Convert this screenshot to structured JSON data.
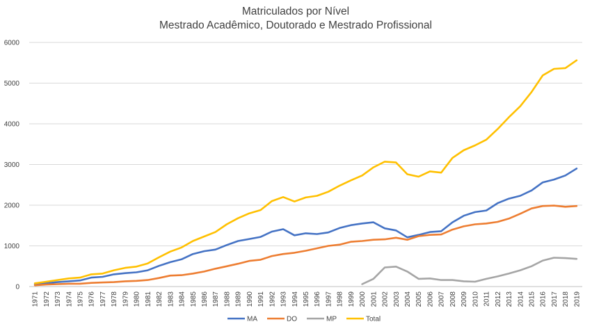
{
  "chart_data": {
    "type": "line",
    "title": "Matriculados por Nível",
    "subtitle": "Mestrado Acadêmico, Doutorado e Mestrado Profissional",
    "xlabel": "",
    "ylabel": "",
    "ylim": [
      0,
      6000
    ],
    "yticks": [
      "0",
      "1000",
      "2000",
      "3000",
      "4000",
      "5000",
      "6000"
    ],
    "grid": true,
    "legend_position": "bottom",
    "categories": [
      "1971",
      "1972",
      "1973",
      "1974",
      "1975",
      "1976",
      "1977",
      "1978",
      "1979",
      "1980",
      "1981",
      "1982",
      "1983",
      "1984",
      "1985",
      "1986",
      "1987",
      "1988",
      "1989",
      "1990",
      "1991",
      "1992",
      "1993",
      "1994",
      "1995",
      "1996",
      "1997",
      "1998",
      "1999",
      "2000",
      "2001",
      "2002",
      "2003",
      "2004",
      "2005",
      "2006",
      "2007",
      "2008",
      "2009",
      "2010",
      "2011",
      "2012",
      "2013",
      "2014",
      "2015",
      "2016",
      "2017",
      "2018",
      "2019"
    ],
    "series": [
      {
        "name": "MA",
        "color": "#4472C4",
        "values": [
          50,
          80,
          110,
          130,
          150,
          220,
          240,
          300,
          330,
          350,
          400,
          510,
          600,
          670,
          800,
          870,
          910,
          1020,
          1120,
          1170,
          1220,
          1350,
          1410,
          1260,
          1310,
          1290,
          1330,
          1440,
          1510,
          1550,
          1580,
          1430,
          1380,
          1210,
          1270,
          1340,
          1360,
          1580,
          1740,
          1830,
          1870,
          2050,
          2160,
          2230,
          2360,
          2560,
          2630,
          2730,
          2900
        ]
      },
      {
        "name": "DO",
        "color": "#ED7D31",
        "values": [
          30,
          50,
          60,
          70,
          70,
          90,
          100,
          110,
          130,
          140,
          160,
          210,
          270,
          280,
          320,
          370,
          440,
          500,
          560,
          630,
          660,
          750,
          800,
          830,
          880,
          940,
          1000,
          1030,
          1100,
          1120,
          1150,
          1160,
          1200,
          1150,
          1240,
          1270,
          1280,
          1400,
          1480,
          1530,
          1550,
          1590,
          1670,
          1790,
          1920,
          1980,
          1990,
          1960,
          1980
        ]
      },
      {
        "name": "MP",
        "color": "#A5A5A5",
        "values": [
          null,
          null,
          null,
          null,
          null,
          null,
          null,
          null,
          null,
          null,
          null,
          null,
          null,
          null,
          null,
          null,
          null,
          null,
          null,
          null,
          null,
          null,
          null,
          null,
          null,
          null,
          null,
          null,
          null,
          60,
          190,
          470,
          490,
          370,
          190,
          200,
          160,
          160,
          130,
          120,
          190,
          250,
          320,
          400,
          500,
          640,
          710,
          700,
          680
        ]
      },
      {
        "name": "Total",
        "color": "#FFC000",
        "values": [
          80,
          120,
          160,
          200,
          220,
          300,
          320,
          400,
          460,
          490,
          570,
          720,
          860,
          960,
          1120,
          1230,
          1340,
          1530,
          1680,
          1800,
          1880,
          2100,
          2200,
          2090,
          2190,
          2230,
          2330,
          2480,
          2610,
          2730,
          2930,
          3070,
          3050,
          2760,
          2700,
          2830,
          2800,
          3160,
          3350,
          3470,
          3610,
          3870,
          4160,
          4430,
          4780,
          5190,
          5350,
          5370,
          5560
        ]
      }
    ]
  }
}
